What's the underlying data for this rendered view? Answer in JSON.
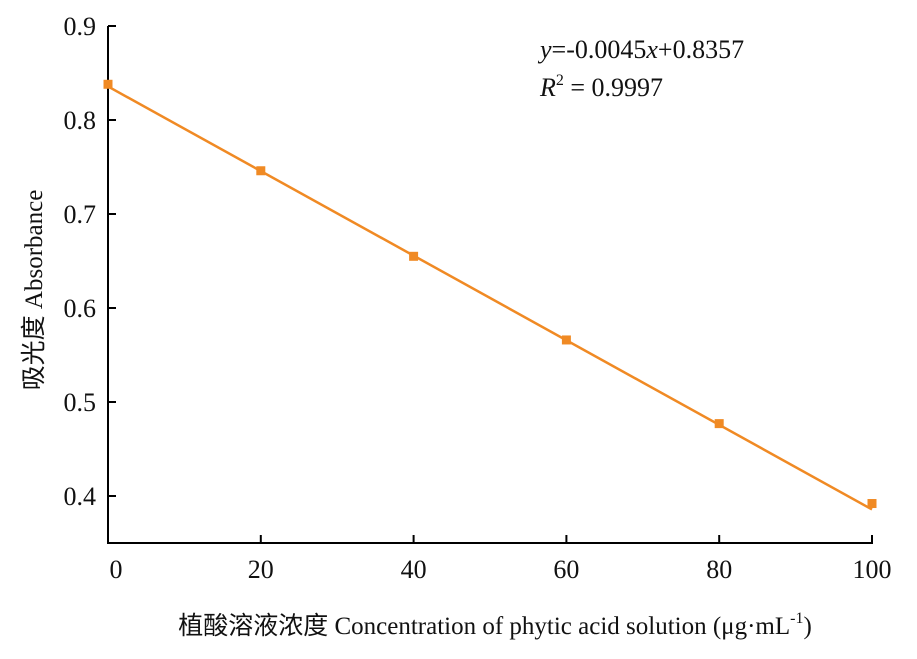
{
  "chart_data": {
    "type": "scatter",
    "x": [
      0,
      20,
      40,
      60,
      80,
      100
    ],
    "series": [
      {
        "values": [
          0.838,
          0.746,
          0.655,
          0.566,
          0.477,
          0.392
        ],
        "color": "#F08A24"
      }
    ],
    "fit_line": {
      "slope": -0.0045,
      "intercept": 0.8357,
      "color": "#F08A24"
    },
    "xlabel": "植酸溶液浓度 Concentration of phytic acid solution (μg·mL-1)",
    "xlabel_parts": {
      "main": "植酸溶液浓度 Concentration of phytic acid solution (μg·mL",
      "superscript": "-1",
      "close": ")"
    },
    "ylabel": "吸光度 Absorbance",
    "xlim": [
      0,
      100
    ],
    "ylim": [
      0.35,
      0.9
    ],
    "x_ticks": [
      0,
      20,
      40,
      60,
      80,
      100
    ],
    "x_tick_labels": [
      "0",
      "20",
      "40",
      "60",
      "80",
      "100"
    ],
    "y_ticks": [
      0.4,
      0.5,
      0.6,
      0.7,
      0.8,
      0.9
    ],
    "y_tick_labels": [
      "0.4",
      "0.5",
      "0.6",
      "0.7",
      "0.8",
      "0.9"
    ],
    "annotations": {
      "equation": {
        "y": "y",
        "mid": "=-0.0045",
        "x": "x",
        "tail": "+0.8357"
      },
      "r_squared": {
        "r": "R",
        "sup": "2",
        "value": " = 0.9997"
      }
    },
    "grid": false,
    "legend": "none"
  }
}
